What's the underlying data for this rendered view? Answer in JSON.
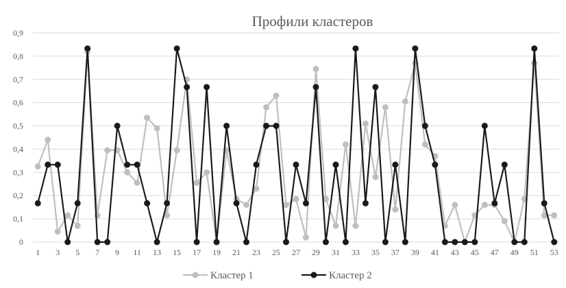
{
  "chart_data": {
    "type": "line",
    "title": "Профили кластеров",
    "xlabel": "",
    "ylabel": "",
    "ylim": [
      0,
      0.9
    ],
    "y_ticks": [
      "0",
      "0,1",
      "0,2",
      "0,3",
      "0,4",
      "0,5",
      "0,6",
      "0,7",
      "0,8",
      "0,9"
    ],
    "x": [
      1,
      2,
      3,
      4,
      5,
      6,
      7,
      8,
      9,
      10,
      11,
      12,
      13,
      14,
      15,
      16,
      17,
      18,
      19,
      20,
      21,
      22,
      23,
      24,
      25,
      26,
      27,
      28,
      29,
      30,
      31,
      32,
      33,
      34,
      35,
      36,
      37,
      38,
      39,
      40,
      41,
      42,
      43,
      44,
      45,
      46,
      47,
      48,
      49,
      50,
      51,
      52,
      53
    ],
    "x_tick_labels": [
      "1",
      "3",
      "5",
      "7",
      "9",
      "11",
      "13",
      "15",
      "17",
      "19",
      "21",
      "23",
      "25",
      "27",
      "29",
      "31",
      "33",
      "35",
      "37",
      "39",
      "41",
      "43",
      "45",
      "47",
      "49",
      "51",
      "53"
    ],
    "grid": true,
    "legend_position": "bottom",
    "series": [
      {
        "name": "Кластер 1",
        "color": "#bfbfbf",
        "values": [
          0.325,
          0.44,
          0.045,
          0.115,
          0.07,
          0.82,
          0.115,
          0.395,
          0.395,
          0.3,
          0.255,
          0.535,
          0.49,
          0.115,
          0.395,
          0.7,
          0.255,
          0.3,
          0.0,
          0.395,
          0.185,
          0.16,
          0.23,
          0.58,
          0.63,
          0.16,
          0.185,
          0.02,
          0.745,
          0.185,
          0.07,
          0.42,
          0.07,
          0.51,
          0.28,
          0.58,
          0.14,
          0.605,
          0.77,
          0.42,
          0.37,
          0.07,
          0.16,
          0.0,
          0.115,
          0.16,
          0.16,
          0.09,
          0.0,
          0.185,
          0.77,
          0.115,
          0.115
        ]
      },
      {
        "name": "Кластер 2",
        "color": "#1a1a1a",
        "values": [
          0.167,
          0.333,
          0.333,
          0.0,
          0.167,
          0.833,
          0.0,
          0.0,
          0.5,
          0.333,
          0.333,
          0.167,
          0.0,
          0.167,
          0.833,
          0.667,
          0.0,
          0.667,
          0.0,
          0.5,
          0.167,
          0.0,
          0.333,
          0.5,
          0.5,
          0.0,
          0.333,
          0.167,
          0.667,
          0.0,
          0.333,
          0.0,
          0.833,
          0.167,
          0.667,
          0.0,
          0.333,
          0.0,
          0.833,
          0.5,
          0.333,
          0.0,
          0.0,
          0.0,
          0.0,
          0.5,
          0.167,
          0.333,
          0.0,
          0.0,
          0.833,
          0.167,
          0.0
        ]
      }
    ]
  }
}
